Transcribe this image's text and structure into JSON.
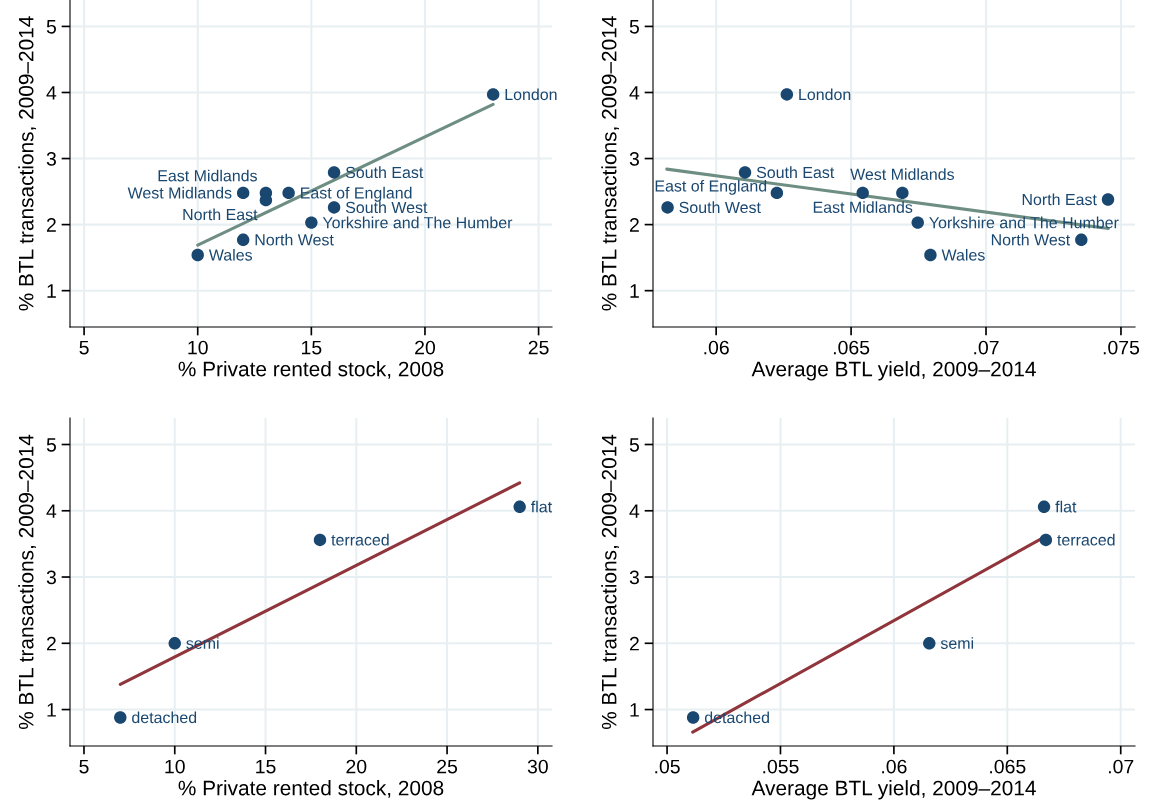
{
  "chart_data": [
    {
      "type": "scatter",
      "xlabel": "% Private rented stock, 2008",
      "ylabel": "% BTL transactions, 2009–2014",
      "xlim": [
        4.38,
        25.59
      ],
      "xticks": [
        5,
        10,
        15,
        20,
        25
      ],
      "ylim": [
        0.45,
        5.4
      ],
      "yticks": [
        1,
        2,
        3,
        4,
        5
      ],
      "grid": true,
      "series": [
        {
          "color": "#1a476f",
          "marker": "circle",
          "x": [
            23,
            16,
            12,
            13,
            13,
            14,
            16,
            15,
            12,
            10
          ],
          "values": [
            3.97,
            2.79,
            2.48,
            2.48,
            2.37,
            2.48,
            2.26,
            2.03,
            1.77,
            1.54
          ]
        },
        {
          "type": "line",
          "color": "#6e8e84",
          "x": [
            10,
            23
          ],
          "values": [
            1.69,
            3.82
          ]
        }
      ],
      "annotations": [
        {
          "text": "London",
          "x": 23,
          "y": 3.97
        },
        {
          "text": "South East",
          "x": 16,
          "y": 2.79
        },
        {
          "text": "West Midlands",
          "x": 12,
          "y": 2.48
        },
        {
          "text": "East Midlands",
          "x": 13,
          "y": 2.48
        },
        {
          "text": "North East",
          "x": 13,
          "y": 2.37
        },
        {
          "text": "East of England",
          "x": 14,
          "y": 2.48
        },
        {
          "text": "South West",
          "x": 16,
          "y": 2.26
        },
        {
          "text": "Yorkshire and The Humber",
          "x": 15,
          "y": 2.03
        },
        {
          "text": "North West",
          "x": 12,
          "y": 1.77
        },
        {
          "text": "Wales",
          "x": 10,
          "y": 1.54
        }
      ]
    },
    {
      "type": "scatter",
      "xlabel": "Average BTL yield, 2009–2014",
      "ylabel": "% BTL transactions, 2009–2014",
      "xlim": [
        0.05766,
        0.07552
      ],
      "xticks": [
        {
          "value": 0.06,
          "label": ".06"
        },
        {
          "value": 0.065,
          "label": ".065"
        },
        {
          "value": 0.07,
          "label": ".07"
        },
        {
          "value": 0.075,
          "label": ".075"
        }
      ],
      "ylim": [
        0.45,
        5.4
      ],
      "yticks": [
        1,
        2,
        3,
        4,
        5
      ],
      "grid": true,
      "series": [
        {
          "color": "#1a476f",
          "marker": "circle",
          "x": [
            0.06262,
            0.06107,
            0.06225,
            0.06543,
            0.0669,
            0.0582,
            0.07452,
            0.06747,
            0.07353,
            0.06794
          ],
          "values": [
            3.97,
            2.79,
            2.48,
            2.48,
            2.48,
            2.26,
            2.38,
            2.03,
            1.77,
            1.54
          ]
        },
        {
          "type": "line",
          "color": "#6e8e84",
          "x": [
            0.05817,
            0.07453
          ],
          "values": [
            2.84,
            1.94
          ]
        }
      ],
      "annotations": [
        {
          "text": "London",
          "x": 0.06262,
          "y": 3.97
        },
        {
          "text": "South East",
          "x": 0.06107,
          "y": 2.79
        },
        {
          "text": "East of England",
          "x": 0.06225,
          "y": 2.48
        },
        {
          "text": "East Midlands",
          "x": 0.06543,
          "y": 2.48
        },
        {
          "text": "West Midlands",
          "x": 0.0669,
          "y": 2.48
        },
        {
          "text": "South West",
          "x": 0.0582,
          "y": 2.26
        },
        {
          "text": "North East",
          "x": 0.07452,
          "y": 2.38
        },
        {
          "text": "Yorkshire and The Humber",
          "x": 0.06747,
          "y": 2.03
        },
        {
          "text": "North West",
          "x": 0.07353,
          "y": 1.77
        },
        {
          "text": "Wales",
          "x": 0.06794,
          "y": 1.54
        }
      ]
    },
    {
      "type": "scatter",
      "xlabel": "% Private rented stock, 2008",
      "ylabel": "% BTL transactions, 2009–2014",
      "xlim": [
        4.23,
        30.78
      ],
      "xticks": [
        5,
        10,
        15,
        20,
        25,
        30
      ],
      "ylim": [
        0.45,
        5.4
      ],
      "yticks": [
        1,
        2,
        3,
        4,
        5
      ],
      "grid": true,
      "series": [
        {
          "color": "#1a476f",
          "marker": "circle",
          "x": [
            29,
            18,
            10,
            7
          ],
          "values": [
            4.06,
            3.56,
            2.0,
            0.88
          ]
        },
        {
          "type": "line",
          "color": "#90353b",
          "x": [
            7,
            29
          ],
          "values": [
            1.38,
            4.42
          ]
        }
      ],
      "annotations": [
        {
          "text": "flat",
          "x": 29,
          "y": 4.06
        },
        {
          "text": "terraced",
          "x": 18,
          "y": 3.56
        },
        {
          "text": "semi",
          "x": 10,
          "y": 2.0
        },
        {
          "text": "detached",
          "x": 7,
          "y": 0.88
        }
      ]
    },
    {
      "type": "scatter",
      "xlabel": "Average BTL yield, 2009–2014",
      "ylabel": "% BTL transactions, 2009–2014",
      "xlim": [
        0.04938,
        0.07063
      ],
      "xticks": [
        {
          "value": 0.05,
          "label": ".05"
        },
        {
          "value": 0.055,
          "label": ".055"
        },
        {
          "value": 0.06,
          "label": ".06"
        },
        {
          "value": 0.065,
          "label": ".065"
        },
        {
          "value": 0.07,
          "label": ".07"
        }
      ],
      "ylim": [
        0.45,
        5.4
      ],
      "yticks": [
        1,
        2,
        3,
        4,
        5
      ],
      "grid": true,
      "series": [
        {
          "color": "#1a476f",
          "marker": "circle",
          "x": [
            0.06662,
            0.0667,
            0.06156,
            0.05115
          ],
          "values": [
            4.06,
            3.56,
            2.0,
            0.88
          ]
        },
        {
          "type": "line",
          "color": "#90353b",
          "x": [
            0.05113,
            0.06667
          ],
          "values": [
            0.66,
            3.61
          ]
        }
      ],
      "annotations": [
        {
          "text": "flat",
          "x": 0.06662,
          "y": 4.06
        },
        {
          "text": "terraced",
          "x": 0.0667,
          "y": 3.56
        },
        {
          "text": "semi",
          "x": 0.06156,
          "y": 2.0
        },
        {
          "text": "detached",
          "x": 0.05115,
          "y": 0.88
        }
      ]
    }
  ]
}
